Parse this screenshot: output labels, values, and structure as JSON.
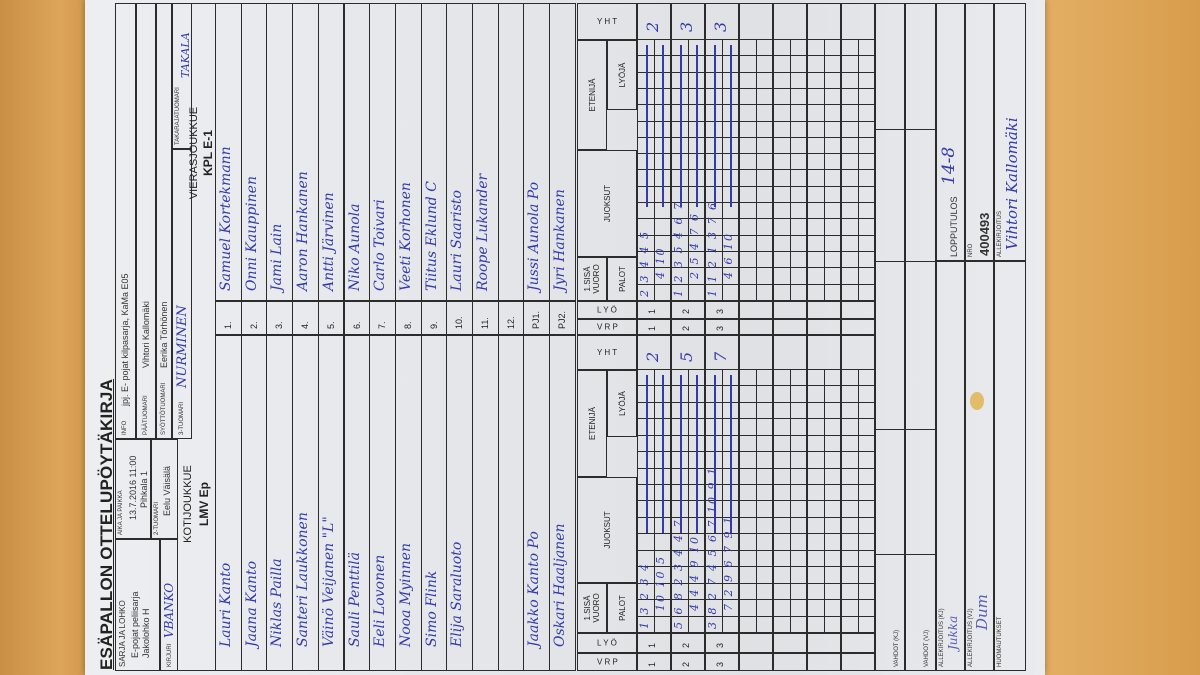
{
  "title": "ESÄPALLON OTTELUPÖYTÄKIRJA",
  "header": {
    "series_label": "SARJA JA LOHKO",
    "series_value": [
      "E-pojat peliisarja",
      "Jakolohko H"
    ],
    "scorer_label": "KIRJURI",
    "scorer_value": "VBANKO",
    "time_place_label": "AIKA JA PAIKKA",
    "time_place_value": [
      "13.7.2016 11:00",
      "Pihkala 1"
    ],
    "umpire2_label": "2-TUOMARI",
    "umpire2_value": "Eelu Väisälä",
    "info_label": "INFO",
    "info_value": "jpj. E- pojat kilpasarja, KaMa E05",
    "head_umpire_label": "PÄÄTUOMARI",
    "head_umpire_value": "Vihtori Kallomäki",
    "pitch_umpire_label": "SYÖTTÖTUOMARI",
    "pitch_umpire_value": "Eerika Törhönen",
    "umpire3_label": "3-TUOMARI",
    "umpire3_value": "NURMINEN",
    "back_umpire_label": "TAKARAJATUOMARI",
    "back_umpire_value": "TAKALA"
  },
  "home": {
    "heading": "KOTIJOUKKUE",
    "team": "LMV Ep",
    "players": [
      "Lauri Kanto",
      "Jaana Kanto",
      "Niklas Pailla",
      "Santeri Laukkonen",
      "Väinö Veijanen \"L\"",
      "Sauli Penttilä",
      "Eeli Lovonen",
      "Nooa Myinnen",
      "Simo Flink",
      "Elija Saraluoto",
      "",
      ""
    ],
    "pj1": "Jaakko Kanto   Po",
    "pj2": "Oskari Haaljanen"
  },
  "away": {
    "heading": "VIERASJOUKKUE",
    "team": "KPL E-1",
    "players": [
      "Samuel Kortekmann",
      "Onni Kauppinen",
      "Jami Lain",
      "Aaron Hankanen",
      "Antti Järvinen",
      "Niko Aunola",
      "Carlo Toivari",
      "Veeti Korhonen",
      "Tiitus Eklund   C",
      "Lauri Saaristo",
      "Roope Lukander",
      ""
    ],
    "pj1": "Jussi Aunola   Po",
    "pj2": "Jyri Hankanen"
  },
  "numbers": [
    "1.",
    "2.",
    "3.",
    "4.",
    "5.",
    "6.",
    "7.",
    "8.",
    "9.",
    "10.",
    "11.",
    "12."
  ],
  "pj_labels": [
    "PJ1.",
    "PJ2."
  ],
  "score_headers": {
    "vrp": "V R P",
    "lyo": "L Y Ö",
    "first_inning": "1.SISÄ VUORO",
    "palot": "PALOT",
    "runs": "JUOKSUT",
    "runner": "ETENIJÄ",
    "batter": "LYÖJÄ",
    "total": "Y H T"
  },
  "home_innings": [
    {
      "vrp": "1",
      "lyo": "1",
      "top": "1  3  2 3 4",
      "bottom": "10  10 5",
      "yht": "2"
    },
    {
      "vrp": "2",
      "lyo": "2",
      "top": "5  6  8 2 3 4 4 7",
      "bottom": "4 4 4 9 10",
      "yht": "5"
    },
    {
      "vrp": "3",
      "lyo": "3",
      "top": "3  8  2 7 4 5 6 7 10 9 1",
      "bottom": "7 2 9 6 7 9 1",
      "yht": "7"
    }
  ],
  "away_innings": [
    {
      "vrp": "1",
      "lyo": "1",
      "top": "2  3  4 4 5",
      "bottom": "4 10",
      "yht": "2"
    },
    {
      "vrp": "2",
      "lyo": "2",
      "top": "1  2  3 5 4 6 7",
      "bottom": "2 5 4 7 6",
      "yht": "3"
    },
    {
      "vrp": "3",
      "lyo": "3",
      "top": "1  1  2 1 3 7 6",
      "bottom": "4 6 10",
      "yht": "3"
    }
  ],
  "footer": {
    "subs_home_label": "VAHDOT (KJ)",
    "subs_away_label": "VAHDOT (VJ)",
    "sign_home_label": "ALLEKIRJOITUS (KJ)",
    "sign_home_value": "Jukka",
    "sign_away_label": "ALLEKIRJOITUS (VJ)",
    "sign_away_value": "Dum",
    "remarks_label": "HUOMAUTUKSET",
    "result_label": "LOPPUTULOS",
    "result_value": "14-8",
    "nro_label": "NRO",
    "nro_value": "400493",
    "signature_label": "ALLEKIRJOITUS",
    "signature_value": "Vihtori Kallomäki"
  },
  "colors": {
    "ink": "#343aa8",
    "paper": "#e6e8eb",
    "table_wood": "#dca55a"
  }
}
